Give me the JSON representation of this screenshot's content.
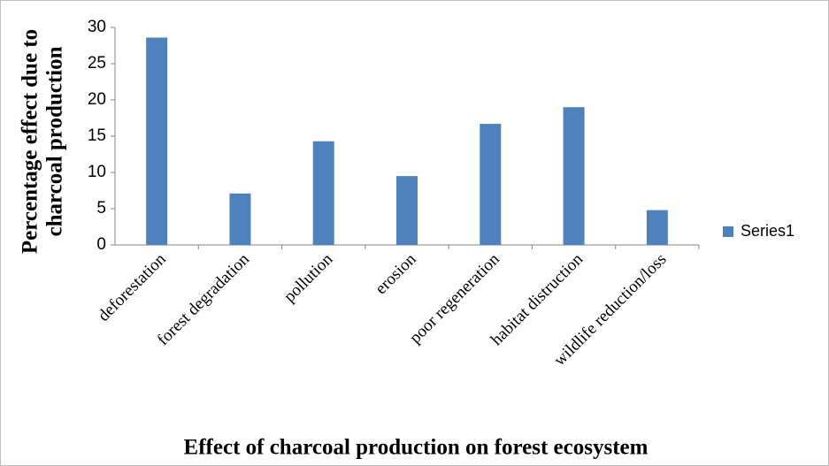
{
  "chart_data": {
    "type": "bar",
    "xlabel": "Effect of charcoal production on forest ecosystem",
    "ylabel": [
      "Percentage effect  due to",
      "charcoal  production"
    ],
    "categories": [
      "deforestation",
      "forest degradation",
      "pollution",
      "erosion",
      "poor regeneration",
      "habitat distruction",
      "wildlife reduction/loss"
    ],
    "series": [
      {
        "name": "Series1",
        "color": "#4f81bd",
        "values": [
          28.6,
          7.1,
          14.3,
          9.5,
          16.7,
          19.0,
          4.8
        ]
      }
    ],
    "ylim": [
      0,
      30
    ],
    "yticks": [
      0,
      5,
      10,
      15,
      20,
      25,
      30
    ],
    "grid": false,
    "legend": "right"
  }
}
